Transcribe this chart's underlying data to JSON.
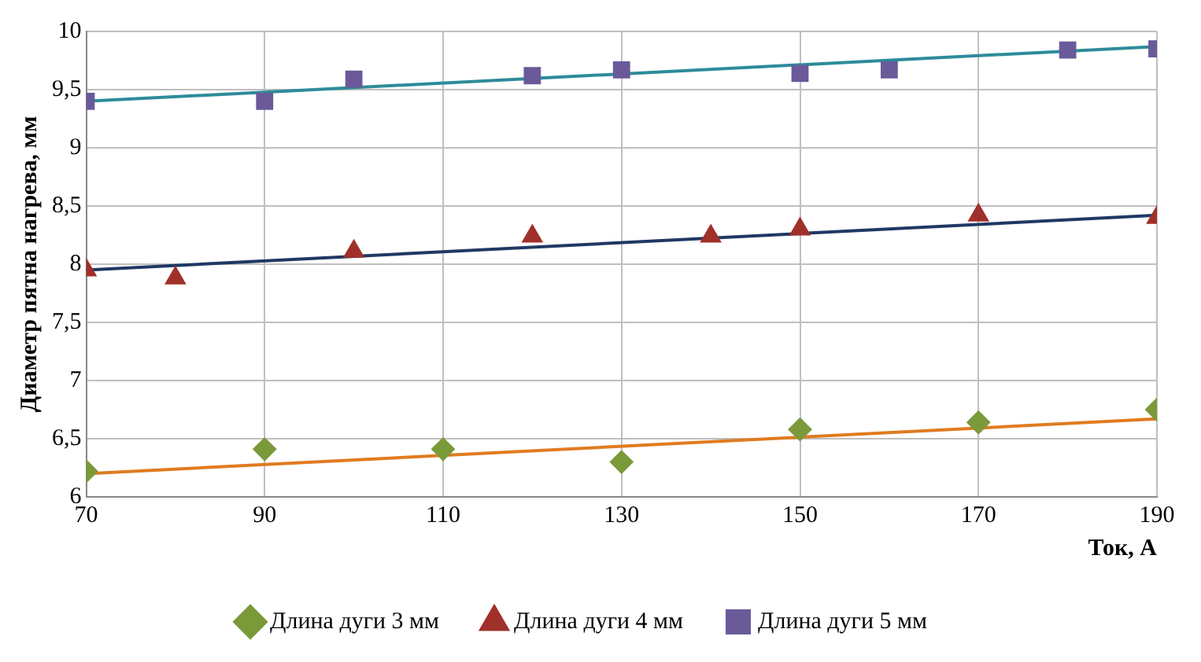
{
  "chart_data": {
    "type": "scatter",
    "xlabel": "Ток, А",
    "ylabel": "Диаметр пятна нагрева, мм",
    "xlim": [
      70,
      190
    ],
    "xticks": [
      70,
      90,
      110,
      130,
      150,
      170,
      190
    ],
    "ylim": [
      6,
      10
    ],
    "yticks": [
      6,
      {
        "value": 6.5,
        "label": "6,5"
      },
      7,
      {
        "value": 7.5,
        "label": "7,5"
      },
      8,
      {
        "value": 8.5,
        "label": "8,5"
      },
      9,
      {
        "value": 9.5,
        "label": "9,5"
      },
      10
    ],
    "grid": true,
    "legend": "bottom",
    "series": [
      {
        "name": "Длина дуги 3 мм",
        "color": "#7a9a3a",
        "marker": "diamond",
        "x": [
          70,
          90,
          110,
          130,
          150,
          170,
          190
        ],
        "values": [
          6.22,
          6.41,
          6.41,
          6.3,
          6.58,
          6.64,
          6.75
        ]
      },
      {
        "name": "Длина дуги 4 мм",
        "color": "#a0302a",
        "marker": "triangle",
        "x": [
          70,
          80,
          100,
          120,
          140,
          150,
          170,
          190
        ],
        "values": [
          7.95,
          7.88,
          8.11,
          8.24,
          8.24,
          8.3,
          8.42,
          8.4
        ]
      },
      {
        "name": "Длина дуги 5 мм",
        "color": "#6a5a9a",
        "marker": "square",
        "x": [
          70,
          90,
          100,
          120,
          130,
          150,
          160,
          180,
          190
        ],
        "values": [
          9.4,
          9.4,
          9.59,
          9.62,
          9.67,
          9.64,
          9.67,
          9.84,
          9.85
        ]
      },
      {
        "type": "line",
        "color": "#e07b20",
        "marker": "none",
        "x": [
          70,
          190
        ],
        "values": [
          6.2,
          6.67
        ]
      },
      {
        "type": "line",
        "color": "#1f3864",
        "marker": "none",
        "x": [
          70,
          190
        ],
        "values": [
          7.95,
          8.42
        ]
      },
      {
        "type": "line",
        "color": "#2e8b9a",
        "marker": "none",
        "x": [
          70,
          190
        ],
        "values": [
          9.4,
          9.87
        ]
      }
    ]
  }
}
